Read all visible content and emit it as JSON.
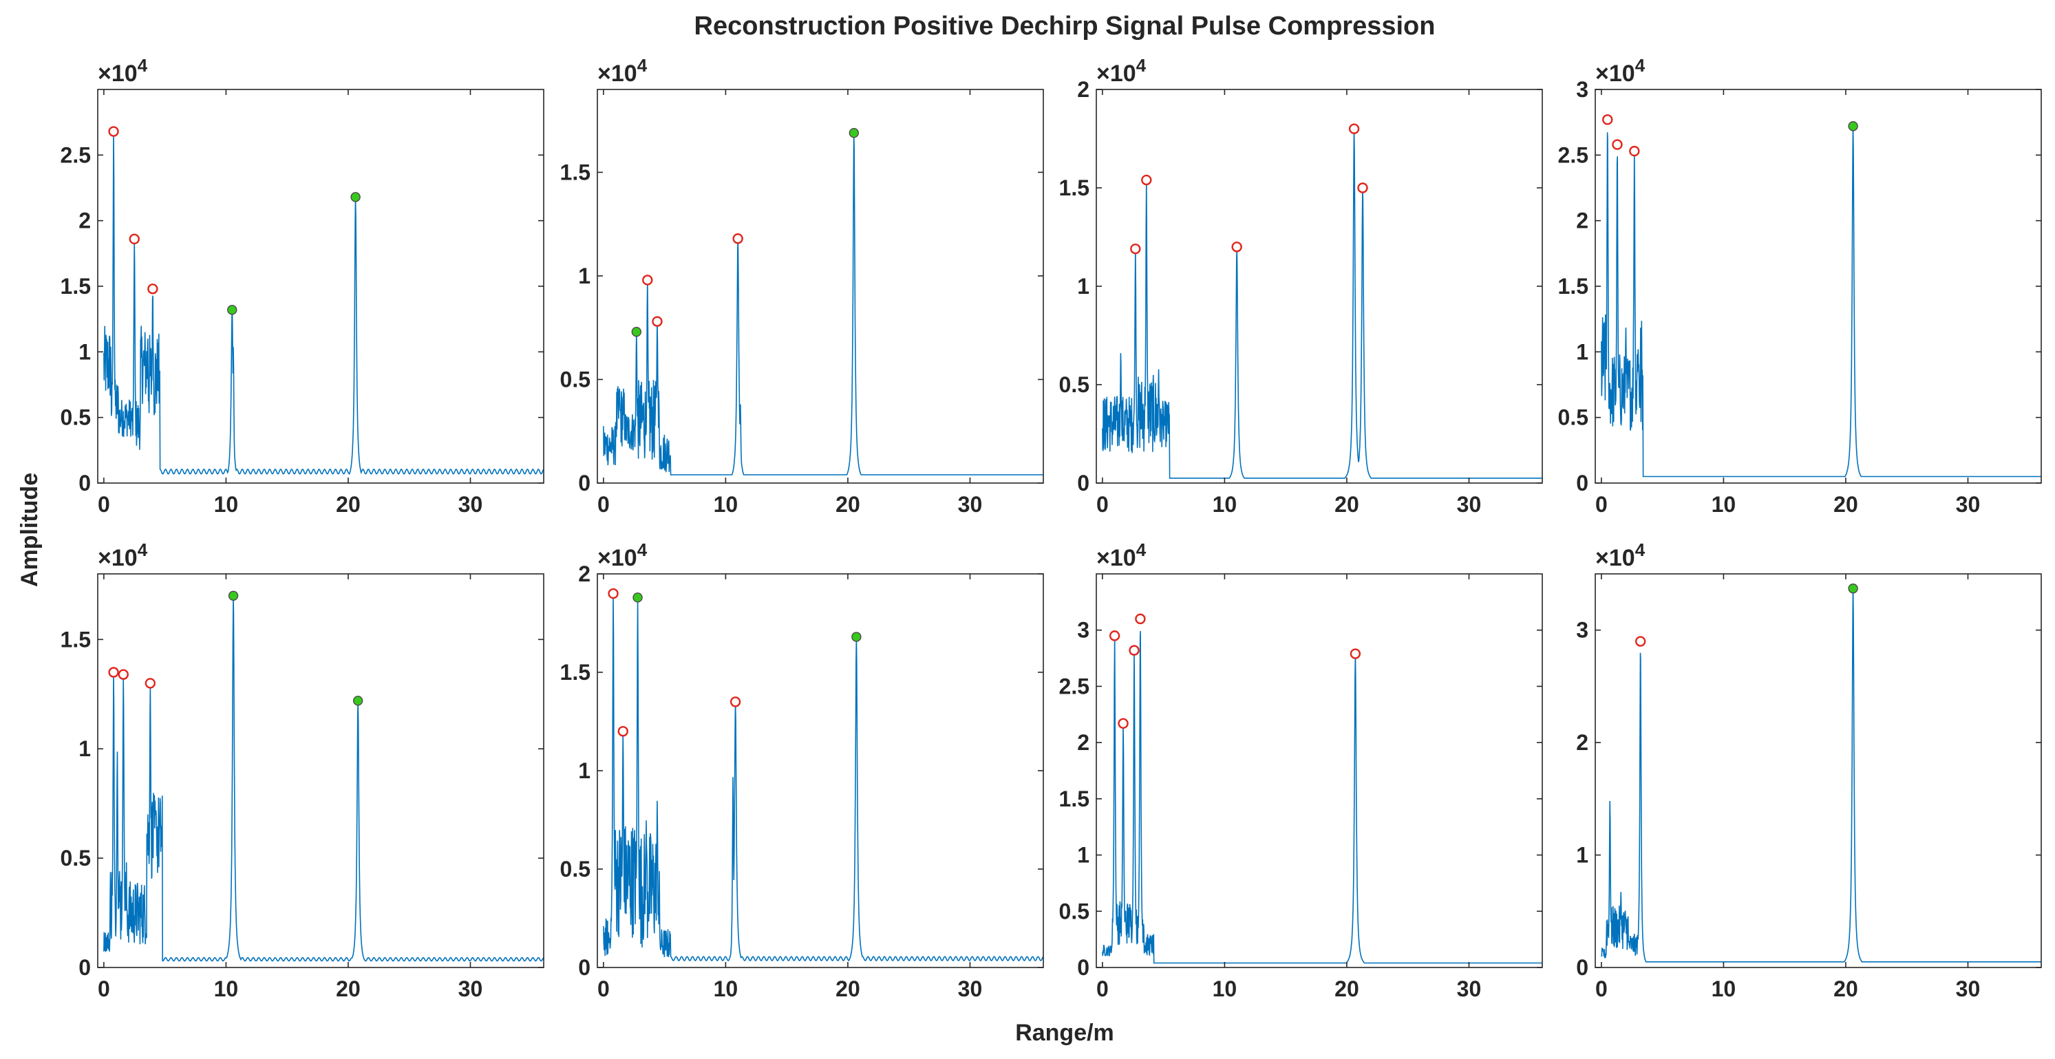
{
  "figure": {
    "title": "Reconstruction Positive Dechirp Signal Pulse Compression",
    "xlabel": "Range/m",
    "ylabel": "Amplitude",
    "y_multiplier": "×10",
    "y_exponent": "4",
    "colors": {
      "line": "#0072BD",
      "marker_red": "#E0261D",
      "marker_green": "#38C81E",
      "axes": "#262626"
    }
  },
  "chart_data": [
    {
      "type": "line",
      "position": "row1-col1",
      "xlim": [
        -0.5,
        36
      ],
      "ylim": [
        0,
        3.0
      ],
      "xticks": [
        0,
        10,
        20,
        30
      ],
      "xtick_labels": [
        "0",
        "10",
        "20",
        "30"
      ],
      "yticks": [
        0,
        0.5,
        1,
        1.5,
        2,
        2.5
      ],
      "ytick_labels": [
        "0",
        "0.5",
        "1",
        "1.5",
        "2",
        "2.5"
      ],
      "peaks": [
        [
          0.8,
          2.68,
          "red"
        ],
        [
          2.5,
          1.86,
          "red"
        ],
        [
          4.0,
          1.48,
          "red"
        ],
        [
          10.5,
          1.32,
          "green"
        ],
        [
          20.6,
          2.18,
          "green"
        ]
      ],
      "noise": [
        [
          0,
          0.6,
          0.9,
          0.3
        ],
        [
          0.6,
          1.2,
          0.6,
          0.2
        ],
        [
          1.2,
          2.3,
          0.5,
          0.15
        ],
        [
          2.3,
          3.0,
          0.45,
          0.2
        ],
        [
          3.0,
          3.6,
          0.9,
          0.3
        ],
        [
          3.6,
          4.6,
          0.8,
          0.35
        ]
      ],
      "mid_peaks": [
        [
          3.6,
          1.1
        ],
        [
          4.4,
          0.85
        ],
        [
          10.6,
          1.05
        ]
      ],
      "floor": 0.07,
      "ripple": 0.035
    },
    {
      "type": "line",
      "position": "row1-col2",
      "xlim": [
        -0.5,
        36
      ],
      "ylim": [
        0,
        1.9
      ],
      "xticks": [
        0,
        10,
        20,
        30
      ],
      "xtick_labels": [
        "0",
        "10",
        "20",
        "30"
      ],
      "yticks": [
        0,
        0.5,
        1,
        1.5
      ],
      "ytick_labels": [
        "0",
        "0.5",
        "1",
        "1.5"
      ],
      "peaks": [
        [
          2.7,
          0.73,
          "green"
        ],
        [
          3.6,
          0.98,
          "red"
        ],
        [
          4.4,
          0.78,
          "red"
        ],
        [
          11.0,
          1.18,
          "red"
        ],
        [
          20.5,
          1.69,
          "green"
        ]
      ],
      "noise": [
        [
          0,
          1.0,
          0.18,
          0.1
        ],
        [
          1.0,
          1.8,
          0.32,
          0.15
        ],
        [
          1.8,
          2.6,
          0.25,
          0.1
        ],
        [
          2.6,
          4.6,
          0.3,
          0.2
        ],
        [
          4.6,
          5.5,
          0.15,
          0.1
        ]
      ],
      "mid_peaks": [
        [
          1.3,
          0.48
        ],
        [
          11.2,
          0.4
        ]
      ],
      "floor": 0.04,
      "ripple": 0.0
    },
    {
      "type": "line",
      "position": "row1-col3",
      "xlim": [
        -0.5,
        36
      ],
      "ylim": [
        0,
        2.0
      ],
      "xticks": [
        0,
        10,
        20,
        30
      ],
      "xtick_labels": [
        "0",
        "10",
        "20",
        "30"
      ],
      "yticks": [
        0,
        0.5,
        1,
        1.5,
        2
      ],
      "ytick_labels": [
        "0",
        "0.5",
        "1",
        "1.5",
        "2"
      ],
      "peaks": [
        [
          2.7,
          1.19,
          "red"
        ],
        [
          3.6,
          1.54,
          "red"
        ],
        [
          11.0,
          1.2,
          "red"
        ],
        [
          20.6,
          1.8,
          "red"
        ],
        [
          21.3,
          1.5,
          "red"
        ]
      ],
      "noise": [
        [
          0,
          2.4,
          0.3,
          0.15
        ],
        [
          2.4,
          4.5,
          0.35,
          0.2
        ],
        [
          4.5,
          5.5,
          0.3,
          0.12
        ]
      ],
      "mid_peaks": [
        [
          1.5,
          0.68
        ],
        [
          4.6,
          0.58
        ],
        [
          5.3,
          0.4
        ]
      ],
      "floor": 0.025,
      "ripple": 0.0
    },
    {
      "type": "line",
      "position": "row1-col4",
      "xlim": [
        -0.5,
        36
      ],
      "ylim": [
        0,
        3.0
      ],
      "xticks": [
        0,
        10,
        20,
        30
      ],
      "xtick_labels": [
        "0",
        "10",
        "20",
        "30"
      ],
      "yticks": [
        0,
        0.5,
        1,
        1.5,
        2,
        2.5,
        3
      ],
      "ytick_labels": [
        "0",
        "0.5",
        "1",
        "1.5",
        "2",
        "2.5",
        "3"
      ],
      "peaks": [
        [
          0.5,
          2.77,
          "red"
        ],
        [
          1.3,
          2.58,
          "red"
        ],
        [
          2.7,
          2.53,
          "red"
        ],
        [
          20.6,
          2.72,
          "green"
        ]
      ],
      "noise": [
        [
          0,
          0.4,
          0.9,
          0.4
        ],
        [
          0.4,
          2.6,
          0.7,
          0.3
        ],
        [
          2.6,
          3.4,
          0.8,
          0.5
        ]
      ],
      "mid_peaks": [
        [
          2.0,
          1.2
        ],
        [
          3.0,
          1.05
        ]
      ],
      "floor": 0.05,
      "ripple": 0.0
    },
    {
      "type": "line",
      "position": "row2-col1",
      "xlim": [
        -0.5,
        36
      ],
      "ylim": [
        0,
        1.8
      ],
      "xticks": [
        0,
        10,
        20,
        30
      ],
      "xtick_labels": [
        "0",
        "10",
        "20",
        "30"
      ],
      "yticks": [
        0,
        0.5,
        1,
        1.5
      ],
      "ytick_labels": [
        "0",
        "0.5",
        "1",
        "1.5"
      ],
      "peaks": [
        [
          0.8,
          1.35,
          "red"
        ],
        [
          1.6,
          1.34,
          "red"
        ],
        [
          3.8,
          1.3,
          "red"
        ],
        [
          10.6,
          1.7,
          "green"
        ],
        [
          20.8,
          1.22,
          "green"
        ]
      ],
      "noise": [
        [
          0,
          0.5,
          0.12,
          0.05
        ],
        [
          0.5,
          1.9,
          0.3,
          0.2
        ],
        [
          1.9,
          3.5,
          0.25,
          0.15
        ],
        [
          3.5,
          4.8,
          0.6,
          0.2
        ]
      ],
      "mid_peaks": [
        [
          1.1,
          1.0
        ],
        [
          4.3,
          0.7
        ]
      ],
      "floor": 0.03,
      "ripple": 0.015
    },
    {
      "type": "line",
      "position": "row2-col2",
      "xlim": [
        -0.5,
        36
      ],
      "ylim": [
        0,
        2.0
      ],
      "xticks": [
        0,
        10,
        20,
        30
      ],
      "xtick_labels": [
        "0",
        "10",
        "20",
        "30"
      ],
      "yticks": [
        0,
        0.5,
        1,
        1.5,
        2
      ],
      "ytick_labels": [
        "0",
        "0.5",
        "1",
        "1.5",
        "2"
      ],
      "peaks": [
        [
          0.8,
          1.9,
          "red"
        ],
        [
          1.6,
          1.2,
          "red"
        ],
        [
          2.8,
          1.88,
          "green"
        ],
        [
          10.8,
          1.35,
          "red"
        ],
        [
          20.7,
          1.68,
          "green"
        ]
      ],
      "noise": [
        [
          0,
          0.7,
          0.15,
          0.1
        ],
        [
          0.7,
          2.6,
          0.45,
          0.3
        ],
        [
          2.6,
          4.6,
          0.4,
          0.3
        ],
        [
          4.6,
          5.5,
          0.12,
          0.08
        ]
      ],
      "mid_peaks": [
        [
          3.5,
          0.75
        ],
        [
          4.4,
          0.85
        ],
        [
          10.6,
          0.98
        ]
      ],
      "floor": 0.035,
      "ripple": 0.02
    },
    {
      "type": "line",
      "position": "row2-col3",
      "xlim": [
        -0.5,
        36
      ],
      "ylim": [
        0,
        3.5
      ],
      "xticks": [
        0,
        10,
        20,
        30
      ],
      "xtick_labels": [
        "0",
        "10",
        "20",
        "30"
      ],
      "yticks": [
        0,
        0.5,
        1,
        1.5,
        2,
        2.5,
        3
      ],
      "ytick_labels": [
        "0",
        "0.5",
        "1",
        "1.5",
        "2",
        "2.5",
        "3"
      ],
      "peaks": [
        [
          1.0,
          2.95,
          "red"
        ],
        [
          1.7,
          2.17,
          "red"
        ],
        [
          2.6,
          2.82,
          "red"
        ],
        [
          3.1,
          3.1,
          "red"
        ],
        [
          20.7,
          2.79,
          "red"
        ]
      ],
      "noise": [
        [
          0,
          0.8,
          0.15,
          0.05
        ],
        [
          0.8,
          3.4,
          0.4,
          0.2
        ],
        [
          3.4,
          4.2,
          0.2,
          0.1
        ]
      ],
      "mid_peaks": [],
      "floor": 0.04,
      "ripple": 0.0
    },
    {
      "type": "line",
      "position": "row2-col4",
      "xlim": [
        -0.5,
        36
      ],
      "ylim": [
        0,
        3.5
      ],
      "xticks": [
        0,
        10,
        20,
        30
      ],
      "xtick_labels": [
        "0",
        "10",
        "20",
        "30"
      ],
      "yticks": [
        0,
        1,
        2,
        3
      ],
      "ytick_labels": [
        "0",
        "1",
        "2",
        "3"
      ],
      "peaks": [
        [
          3.2,
          2.9,
          "red"
        ],
        [
          20.6,
          3.37,
          "green"
        ]
      ],
      "noise": [
        [
          0,
          0.4,
          0.12,
          0.05
        ],
        [
          0.4,
          2.2,
          0.35,
          0.2
        ],
        [
          2.2,
          3.0,
          0.2,
          0.1
        ]
      ],
      "mid_peaks": [
        [
          0.7,
          1.5
        ],
        [
          1.6,
          0.68
        ]
      ],
      "floor": 0.05,
      "ripple": 0.0
    }
  ]
}
